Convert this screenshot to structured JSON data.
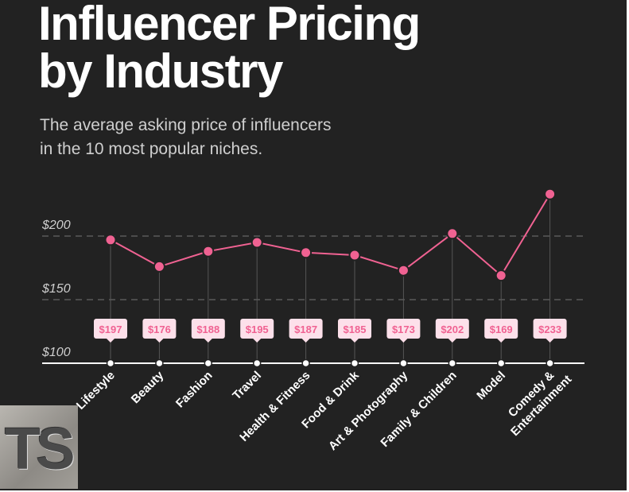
{
  "title_lines": [
    "Influencer Pricing",
    "by Industry"
  ],
  "subtitle_lines": [
    "The average asking price of influencers",
    "in the 10 most popular niches."
  ],
  "logo_text": "TS",
  "colors": {
    "background": "#222222",
    "line": "#f06292",
    "label_bg": "#fde0ea",
    "label_text": "#f06292",
    "axis": "#ffffff"
  },
  "chart_data": {
    "type": "line",
    "title": "Influencer Pricing by Industry",
    "subtitle": "The average asking price of influencers in the 10 most popular niches.",
    "categories": [
      "Lifestyle",
      "Beauty",
      "Fashion",
      "Travel",
      "Health & Fitness",
      "Food & Drink",
      "Art & Photography",
      "Family & Children",
      "Model",
      "Comedy & Entertainment"
    ],
    "values": [
      197,
      176,
      188,
      195,
      187,
      185,
      173,
      202,
      169,
      233
    ],
    "data_labels": [
      "$197",
      "$176",
      "$188",
      "$195",
      "$187",
      "$185",
      "$173",
      "$202",
      "$169",
      "$233"
    ],
    "yticks": [
      100,
      150,
      200
    ],
    "ytick_labels": [
      "$100",
      "$150",
      "$200"
    ],
    "ylim": [
      100,
      240
    ],
    "grid": "dashed horizontal",
    "legend": "none"
  }
}
